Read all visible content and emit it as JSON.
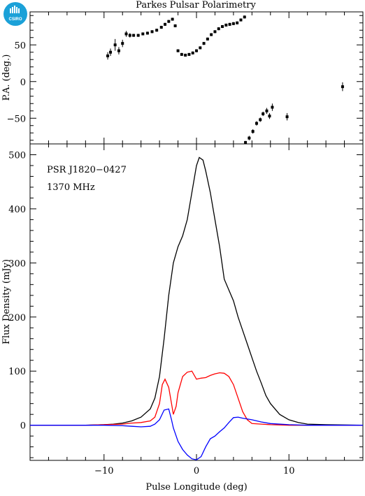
{
  "header": {
    "title": "Parkes Pulsar Polarimetry",
    "logo_text": "CSIRO"
  },
  "chart_data": [
    {
      "type": "scatter",
      "panel": "position-angle",
      "ylabel": "P.A. (deg.)",
      "xlim": [
        -18,
        18
      ],
      "ylim": [
        -85,
        95
      ],
      "yticks": [
        -50,
        0,
        50
      ],
      "points": [
        {
          "x": -9.6,
          "y": 35,
          "err": 5
        },
        {
          "x": -9.3,
          "y": 40,
          "err": 5
        },
        {
          "x": -8.8,
          "y": 50,
          "err": 8
        },
        {
          "x": -8.4,
          "y": 42,
          "err": 5
        },
        {
          "x": -8.0,
          "y": 52,
          "err": 5
        },
        {
          "x": -7.6,
          "y": 65,
          "err": 4
        },
        {
          "x": -7.2,
          "y": 63,
          "err": 3
        },
        {
          "x": -6.8,
          "y": 63,
          "err": 2
        },
        {
          "x": -6.3,
          "y": 63,
          "err": 2
        },
        {
          "x": -5.8,
          "y": 65,
          "err": 2
        },
        {
          "x": -5.3,
          "y": 66,
          "err": 2
        },
        {
          "x": -4.8,
          "y": 68,
          "err": 2
        },
        {
          "x": -4.3,
          "y": 70,
          "err": 2
        },
        {
          "x": -3.8,
          "y": 74,
          "err": 2
        },
        {
          "x": -3.4,
          "y": 78,
          "err": 2
        },
        {
          "x": -3.0,
          "y": 82,
          "err": 2
        },
        {
          "x": -2.6,
          "y": 85,
          "err": 2
        },
        {
          "x": -2.3,
          "y": 76,
          "err": 2
        },
        {
          "x": -2.0,
          "y": 42,
          "err": 2
        },
        {
          "x": -1.6,
          "y": 37,
          "err": 2
        },
        {
          "x": -1.2,
          "y": 36,
          "err": 2
        },
        {
          "x": -0.8,
          "y": 37,
          "err": 2
        },
        {
          "x": -0.4,
          "y": 39,
          "err": 2
        },
        {
          "x": 0.0,
          "y": 42,
          "err": 2
        },
        {
          "x": 0.4,
          "y": 46,
          "err": 2
        },
        {
          "x": 0.8,
          "y": 52,
          "err": 2
        },
        {
          "x": 1.2,
          "y": 58,
          "err": 2
        },
        {
          "x": 1.6,
          "y": 64,
          "err": 2
        },
        {
          "x": 2.0,
          "y": 68,
          "err": 2
        },
        {
          "x": 2.4,
          "y": 72,
          "err": 2
        },
        {
          "x": 2.8,
          "y": 75,
          "err": 2
        },
        {
          "x": 3.2,
          "y": 77,
          "err": 2
        },
        {
          "x": 3.6,
          "y": 78,
          "err": 2
        },
        {
          "x": 4.0,
          "y": 79,
          "err": 2
        },
        {
          "x": 4.4,
          "y": 80,
          "err": 2
        },
        {
          "x": 4.8,
          "y": 84,
          "err": 2
        },
        {
          "x": 5.2,
          "y": 88,
          "err": 2
        },
        {
          "x": 5.3,
          "y": -83,
          "err": 2
        },
        {
          "x": 5.7,
          "y": -77,
          "err": 3
        },
        {
          "x": 6.1,
          "y": -68,
          "err": 3
        },
        {
          "x": 6.5,
          "y": -57,
          "err": 3
        },
        {
          "x": 6.9,
          "y": -52,
          "err": 3
        },
        {
          "x": 7.2,
          "y": -44,
          "err": 3
        },
        {
          "x": 7.6,
          "y": -40,
          "err": 4
        },
        {
          "x": 7.9,
          "y": -47,
          "err": 4
        },
        {
          "x": 8.2,
          "y": -35,
          "err": 5
        },
        {
          "x": 9.8,
          "y": -48,
          "err": 5
        },
        {
          "x": 15.8,
          "y": -7,
          "err": 6
        }
      ]
    },
    {
      "type": "line",
      "panel": "profile",
      "xlabel": "Pulse Longitude (deg)",
      "ylabel": "Flux Density (mJy)",
      "xlim": [
        -18,
        18
      ],
      "ylim": [
        -65,
        520
      ],
      "xticks": [
        -10,
        0,
        10
      ],
      "yticks": [
        0,
        100,
        200,
        300,
        400,
        500
      ],
      "annotations": [
        "PSR J1820−0427",
        "1370 MHz"
      ],
      "series": [
        {
          "color": "#000000",
          "x": [
            -18,
            -12,
            -10,
            -9,
            -8,
            -7,
            -6,
            -5,
            -4.5,
            -4,
            -3.5,
            -3,
            -2.5,
            -2,
            -1.5,
            -1,
            -0.5,
            0,
            0.3,
            0.7,
            1,
            1.5,
            2,
            2.5,
            3,
            3.5,
            4,
            4.5,
            5,
            5.5,
            6,
            6.5,
            7,
            7.5,
            8,
            9,
            10,
            11,
            12,
            14,
            18
          ],
          "values": [
            0,
            0,
            1,
            2,
            4,
            8,
            15,
            30,
            50,
            90,
            160,
            240,
            300,
            330,
            350,
            380,
            430,
            480,
            495,
            490,
            470,
            430,
            380,
            330,
            270,
            250,
            230,
            200,
            175,
            150,
            125,
            100,
            78,
            55,
            40,
            20,
            10,
            5,
            2,
            1,
            0
          ]
        },
        {
          "color": "#ff0000",
          "x": [
            -18,
            -12,
            -10,
            -8,
            -7,
            -6,
            -5,
            -4.5,
            -4,
            -3.7,
            -3.4,
            -3,
            -2.7,
            -2.5,
            -2.2,
            -2,
            -1.5,
            -1,
            -0.5,
            0,
            0.5,
            1,
            1.5,
            2,
            2.5,
            3,
            3.5,
            4,
            4.5,
            5,
            5.5,
            6,
            7,
            8,
            10,
            18
          ],
          "values": [
            0,
            0,
            1,
            2,
            4,
            5,
            8,
            15,
            40,
            75,
            85,
            70,
            40,
            20,
            35,
            60,
            90,
            98,
            100,
            85,
            87,
            88,
            92,
            95,
            97,
            96,
            90,
            75,
            50,
            25,
            10,
            3,
            2,
            1,
            0,
            0
          ]
        },
        {
          "color": "#0000ff",
          "x": [
            -18,
            -10,
            -8,
            -7,
            -6,
            -5,
            -4.5,
            -4,
            -3.5,
            -3,
            -2.7,
            -2.5,
            -2,
            -1.5,
            -1,
            -0.5,
            0,
            0.5,
            1,
            1.5,
            2,
            2.5,
            3,
            3.5,
            4,
            4.5,
            5,
            6,
            7,
            8,
            10,
            12,
            18
          ],
          "values": [
            0,
            0,
            -1,
            -2,
            -3,
            -2,
            2,
            10,
            28,
            30,
            10,
            -5,
            -30,
            -45,
            -55,
            -62,
            -64,
            -58,
            -40,
            -25,
            -20,
            -12,
            -5,
            5,
            14,
            15,
            13,
            10,
            6,
            3,
            1,
            0,
            0
          ]
        }
      ]
    }
  ]
}
